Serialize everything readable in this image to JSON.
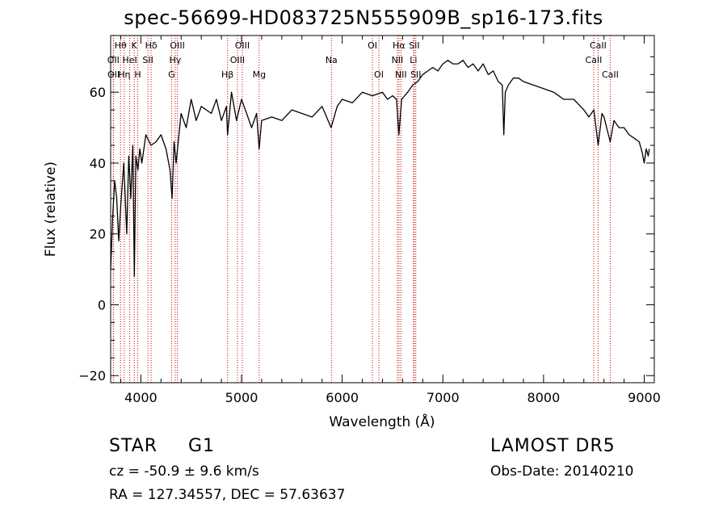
{
  "title": "spec-56699-HD083725N555909B_sp16-173.fits",
  "footer": {
    "object_class": "STAR",
    "subclass": "G1",
    "cz_text": "cz = -50.9 ± 9.6 km/s",
    "coords_text": "RA = 127.34557, DEC =  57.63637",
    "survey": "LAMOST DR5",
    "obs_date_text": "Obs-Date: 20140210"
  },
  "chart_data": {
    "type": "line",
    "title": "spec-56699-HD083725N555909B_sp16-173.fits",
    "xlabel": "Wavelength (Å)",
    "ylabel": "Flux (relative)",
    "xlim": [
      3700,
      9100
    ],
    "ylim": [
      -22,
      76
    ],
    "xticks": [
      4000,
      5000,
      6000,
      7000,
      8000,
      9000
    ],
    "yticks": [
      -20,
      0,
      20,
      40,
      60
    ],
    "line_color": "#000000",
    "marker_color": "#cc0000",
    "series": [
      {
        "x": [
          3700,
          3720,
          3740,
          3760,
          3780,
          3800,
          3830,
          3860,
          3880,
          3900,
          3920,
          3935,
          3950,
          3970,
          3990,
          4010,
          4050,
          4100,
          4150,
          4200,
          4250,
          4290,
          4310,
          4330,
          4350,
          4400,
          4450,
          4500,
          4550,
          4600,
          4650,
          4700,
          4750,
          4800,
          4850,
          4861,
          4900,
          4950,
          5000,
          5050,
          5100,
          5150,
          5175,
          5200,
          5300,
          5400,
          5500,
          5600,
          5700,
          5800,
          5890,
          5950,
          6000,
          6100,
          6200,
          6300,
          6400,
          6450,
          6500,
          6540,
          6563,
          6590,
          6650,
          6700,
          6750,
          6800,
          6850,
          6900,
          6950,
          7000,
          7050,
          7100,
          7150,
          7200,
          7250,
          7300,
          7350,
          7400,
          7450,
          7500,
          7550,
          7590,
          7605,
          7620,
          7650,
          7700,
          7750,
          7800,
          7900,
          8000,
          8100,
          8200,
          8300,
          8400,
          8450,
          8500,
          8542,
          8580,
          8600,
          8662,
          8700,
          8750,
          8800,
          8850,
          8900,
          8950,
          8980,
          9000,
          9020,
          9040,
          9050
        ],
        "y": [
          10,
          25,
          35,
          30,
          18,
          28,
          40,
          20,
          42,
          30,
          45,
          8,
          42,
          38,
          44,
          40,
          48,
          45,
          46,
          48,
          44,
          38,
          30,
          46,
          40,
          54,
          50,
          58,
          52,
          56,
          55,
          54,
          58,
          52,
          56,
          48,
          60,
          52,
          58,
          54,
          50,
          54,
          44,
          52,
          53,
          52,
          55,
          54,
          53,
          56,
          50,
          56,
          58,
          57,
          60,
          59,
          60,
          58,
          59,
          58,
          48,
          58,
          60,
          62,
          63,
          65,
          66,
          67,
          66,
          68,
          69,
          68,
          68,
          69,
          67,
          68,
          66,
          68,
          65,
          66,
          63,
          62,
          48,
          60,
          62,
          64,
          64,
          63,
          62,
          61,
          60,
          58,
          58,
          55,
          53,
          55,
          45,
          54,
          53,
          46,
          52,
          50,
          50,
          48,
          47,
          46,
          43,
          40,
          44,
          42,
          44
        ]
      }
    ],
    "line_markers": [
      {
        "label": "Hθ",
        "wavelength": 3798,
        "row": 1
      },
      {
        "label": "OII",
        "wavelength": 3727,
        "row": 2
      },
      {
        "label": "OII",
        "wavelength": 3729,
        "row": 3
      },
      {
        "label": "Hη",
        "wavelength": 3835,
        "row": 3
      },
      {
        "label": "K",
        "wavelength": 3934,
        "row": 1
      },
      {
        "label": "HeI",
        "wavelength": 3889,
        "row": 2
      },
      {
        "label": "H",
        "wavelength": 3969,
        "row": 3
      },
      {
        "label": "Hδ",
        "wavelength": 4102,
        "row": 1
      },
      {
        "label": "SII",
        "wavelength": 4070,
        "row": 2
      },
      {
        "label": "OIII",
        "wavelength": 4363,
        "row": 1
      },
      {
        "label": "Hγ",
        "wavelength": 4341,
        "row": 2
      },
      {
        "label": "G",
        "wavelength": 4305,
        "row": 3
      },
      {
        "label": "OIII",
        "wavelength": 5007,
        "row": 1
      },
      {
        "label": "OIII",
        "wavelength": 4959,
        "row": 2
      },
      {
        "label": "Hβ",
        "wavelength": 4861,
        "row": 3
      },
      {
        "label": "Mg",
        "wavelength": 5175,
        "row": 3
      },
      {
        "label": "Na",
        "wavelength": 5893,
        "row": 2
      },
      {
        "label": "OI",
        "wavelength": 6300,
        "row": 1
      },
      {
        "label": "OI",
        "wavelength": 6364,
        "row": 3
      },
      {
        "label": "Hα",
        "wavelength": 6563,
        "row": 1
      },
      {
        "label": "SII",
        "wavelength": 6716,
        "row": 1
      },
      {
        "label": "NII",
        "wavelength": 6548,
        "row": 2
      },
      {
        "label": "Li",
        "wavelength": 6708,
        "row": 2
      },
      {
        "label": "NII",
        "wavelength": 6583,
        "row": 3
      },
      {
        "label": "SII",
        "wavelength": 6731,
        "row": 3
      },
      {
        "label": "CaII",
        "wavelength": 8542,
        "row": 1
      },
      {
        "label": "CaII",
        "wavelength": 8498,
        "row": 2
      },
      {
        "label": "CaII",
        "wavelength": 8662,
        "row": 3
      }
    ]
  }
}
